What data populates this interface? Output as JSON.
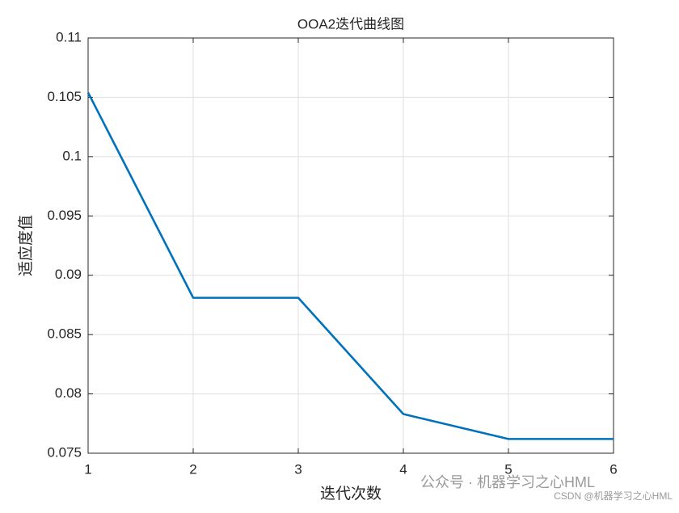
{
  "chart_data": {
    "type": "line",
    "title": "OOA2迭代曲线图",
    "x_label": "迭代次数",
    "y_label": "适应度值",
    "x": [
      1,
      2,
      3,
      4,
      5,
      6
    ],
    "series": [
      {
        "name": "适应度",
        "color": "#0072bd",
        "values": [
          0.1054,
          0.0881,
          0.0881,
          0.0783,
          0.0762,
          0.0762
        ]
      }
    ],
    "xlim": [
      1,
      6
    ],
    "xticks": [
      1,
      2,
      3,
      4,
      5,
      6
    ],
    "ylim": [
      0.075,
      0.11
    ],
    "yticks": [
      0.075,
      0.08,
      0.085,
      0.09,
      0.095,
      0.1,
      0.105,
      0.11
    ],
    "grid": true,
    "annotations": [
      "公众号 · 机器学习之心HML",
      "CSDN @机器学习之心HML"
    ]
  }
}
